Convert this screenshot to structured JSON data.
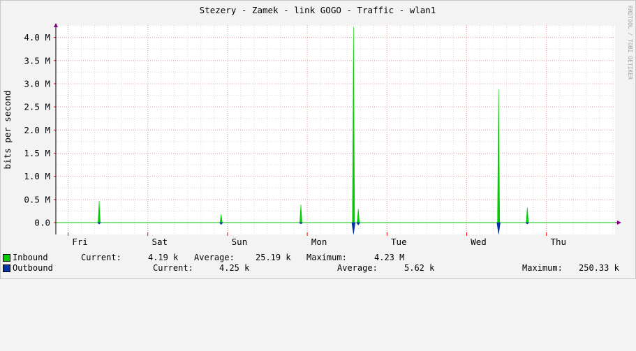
{
  "chart_data": {
    "type": "area",
    "title": "Stezery - Zamek - link GOGO  - Traffic - wlan1",
    "ylabel": "bits per second",
    "watermark": "RRDTOOL / TOBI OETIKER",
    "ylim": [
      0,
      4.25
    ],
    "y_unit": "M bits per second",
    "yticks": [
      {
        "value": 0.0,
        "label": "0.0"
      },
      {
        "value": 0.5,
        "label": "0.5 M"
      },
      {
        "value": 1.0,
        "label": "1.0 M"
      },
      {
        "value": 1.5,
        "label": "1.5 M"
      },
      {
        "value": 2.0,
        "label": "2.0 M"
      },
      {
        "value": 2.5,
        "label": "2.5 M"
      },
      {
        "value": 3.0,
        "label": "3.0 M"
      },
      {
        "value": 3.5,
        "label": "3.5 M"
      },
      {
        "value": 4.0,
        "label": "4.0 M"
      }
    ],
    "x_range_days": [
      0,
      6.85
    ],
    "day_labels": [
      "Fri",
      "Sat",
      "Sun",
      "Mon",
      "Tue",
      "Wed",
      "Thu"
    ],
    "grid": true,
    "series": [
      {
        "name": "Inbound",
        "color": "#00cc00",
        "direction": "up",
        "points": [
          {
            "day": 0.39,
            "value": 0.47
          },
          {
            "day": 1.92,
            "value": 0.18
          },
          {
            "day": 2.92,
            "value": 0.39
          },
          {
            "day": 3.58,
            "value": 4.23
          },
          {
            "day": 3.64,
            "value": 0.3
          },
          {
            "day": 5.4,
            "value": 2.88
          },
          {
            "day": 5.76,
            "value": 0.33
          }
        ]
      },
      {
        "name": "Outbound",
        "color": "#0033aa",
        "direction": "down",
        "points": [
          {
            "day": 0.39,
            "value": 0.03
          },
          {
            "day": 1.92,
            "value": 0.04
          },
          {
            "day": 2.92,
            "value": 0.03
          },
          {
            "day": 3.58,
            "value": 0.25
          },
          {
            "day": 3.64,
            "value": 0.05
          },
          {
            "day": 5.4,
            "value": 0.25
          },
          {
            "day": 5.76,
            "value": 0.03
          }
        ]
      }
    ]
  },
  "legend": {
    "inbound": {
      "name": "Inbound",
      "current_label": "Current:",
      "current_value": "4.19 k",
      "average_label": "Average:",
      "average_value": "25.19 k",
      "maximum_label": "Maximum:",
      "maximum_value": "4.23 M"
    },
    "outbound": {
      "name": "Outbound",
      "current_label": "Current:",
      "current_value": "4.25 k",
      "average_label": "Average:",
      "average_value": "5.62 k",
      "maximum_label": "Maximum:",
      "maximum_value": "250.33 k"
    }
  }
}
